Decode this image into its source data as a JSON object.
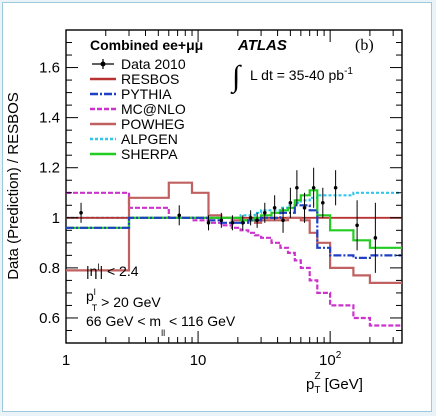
{
  "chart_data": {
    "type": "line",
    "panel_label": "(b)",
    "experiment": "ATLAS",
    "channel": "Combined ee+μμ",
    "luminosity_prefix": "∫",
    "luminosity": "L dt = 35-40 pb",
    "luminosity_exp": "-1",
    "ylabel": "Data (Prediction) / RESBOS",
    "xlabel_main": "p",
    "xlabel_sub": "T",
    "xlabel_sup": "Z",
    "xlabel_unit": "[GeV]",
    "xscale": "log",
    "xlim": [
      1,
      350
    ],
    "ylim": [
      0.5,
      1.75
    ],
    "yticks": [
      {
        "v": 0.6,
        "label": "0.6"
      },
      {
        "v": 0.8,
        "label": "0.8"
      },
      {
        "v": 1.0,
        "label": "1"
      },
      {
        "v": 1.2,
        "label": "1.2"
      },
      {
        "v": 1.4,
        "label": "1.4"
      },
      {
        "v": 1.6,
        "label": "1.6"
      }
    ],
    "xticks": [
      {
        "v": 1,
        "label": "1",
        "sup": ""
      },
      {
        "v": 10,
        "label": "10",
        "sup": ""
      },
      {
        "v": 100,
        "label": "10",
        "sup": "2"
      }
    ],
    "cuts": [
      {
        "a": "|η",
        "sup": "l",
        "b": "| < 2.4"
      },
      {
        "a": "p",
        "sup": "l",
        "sub": "T",
        "b": " > 20 GeV"
      },
      {
        "a": "66 GeV < m",
        "sub": "ll",
        "b": " < 116 GeV"
      }
    ],
    "legend": [
      "Data 2010",
      "RESBOS",
      "PYTHIA",
      "MC@NLO",
      "POWHEG",
      "ALPGEN",
      "SHERPA"
    ],
    "edges": [
      1,
      3,
      6,
      9,
      12,
      15,
      18,
      21,
      24,
      27,
      30,
      36,
      42,
      48,
      54,
      60,
      70,
      80,
      100,
      150,
      200,
      350
    ],
    "data": {
      "name": "Data 2010",
      "color": "#000000",
      "x": [
        1.3,
        7.2,
        12,
        15,
        18.2,
        21.8,
        25,
        28,
        32,
        38,
        44,
        50,
        56,
        64,
        75,
        88,
        110,
        160,
        220
      ],
      "y": [
        1.02,
        1.01,
        0.98,
        0.99,
        0.98,
        0.98,
        1.0,
        0.99,
        1.02,
        1.04,
        0.99,
        1.06,
        1.12,
        1.04,
        1.12,
        1.06,
        1.12,
        0.97,
        0.92
      ],
      "err": [
        0.04,
        0.04,
        0.03,
        0.03,
        0.03,
        0.03,
        0.03,
        0.03,
        0.04,
        0.05,
        0.05,
        0.06,
        0.07,
        0.06,
        0.08,
        0.06,
        0.07,
        0.1,
        0.14
      ]
    },
    "series": [
      {
        "name": "RESBOS",
        "color": "#b83232",
        "dash": "",
        "values": [
          1,
          1,
          1,
          1,
          1,
          1,
          1,
          1,
          1,
          1,
          1,
          1,
          1,
          1,
          1,
          1,
          1,
          1,
          1,
          1,
          1
        ]
      },
      {
        "name": "PYTHIA",
        "color": "#1f3fc4",
        "dash": "8,2,2,2",
        "values": [
          0.96,
          1.0,
          1.0,
          1.0,
          0.99,
          0.98,
          0.98,
          0.98,
          0.99,
          0.99,
          1.0,
          1.0,
          1.02,
          1.02,
          1.05,
          1.05,
          1.03,
          0.88,
          0.85,
          0.84,
          0.85
        ]
      },
      {
        "name": "MC@NLO",
        "color": "#cc33cc",
        "dash": "5,2",
        "values": [
          1.1,
          1.04,
          1.0,
          0.99,
          0.98,
          0.97,
          0.96,
          0.95,
          0.94,
          0.93,
          0.92,
          0.9,
          0.88,
          0.86,
          0.83,
          0.8,
          0.75,
          0.7,
          0.65,
          0.6,
          0.57
        ]
      },
      {
        "name": "POWHEG",
        "color": "#c06060",
        "dash": "",
        "values": [
          0.79,
          1.08,
          1.14,
          1.1,
          1.01,
          1.0,
          0.99,
          0.99,
          0.99,
          0.98,
          0.99,
          0.99,
          0.99,
          1.0,
          1.0,
          0.99,
          0.94,
          0.9,
          0.8,
          0.77,
          0.74
        ]
      },
      {
        "name": "ALPGEN",
        "color": "#33c6e8",
        "dash": "3,2",
        "values": [
          1.0,
          1.0,
          1.0,
          1.0,
          1.0,
          1.0,
          1.0,
          1.01,
          1.01,
          1.02,
          1.03,
          1.03,
          1.04,
          1.05,
          1.06,
          1.07,
          1.08,
          1.09,
          1.09,
          1.1,
          1.1
        ]
      },
      {
        "name": "SHERPA",
        "color": "#22cc22",
        "dash": "",
        "values": [
          0.96,
          1.0,
          1.0,
          1.0,
          1.0,
          1.0,
          1.0,
          0.99,
          0.99,
          1.0,
          1.01,
          1.02,
          1.03,
          1.04,
          1.07,
          1.09,
          1.11,
          1.01,
          0.95,
          0.91,
          0.88
        ]
      }
    ]
  }
}
